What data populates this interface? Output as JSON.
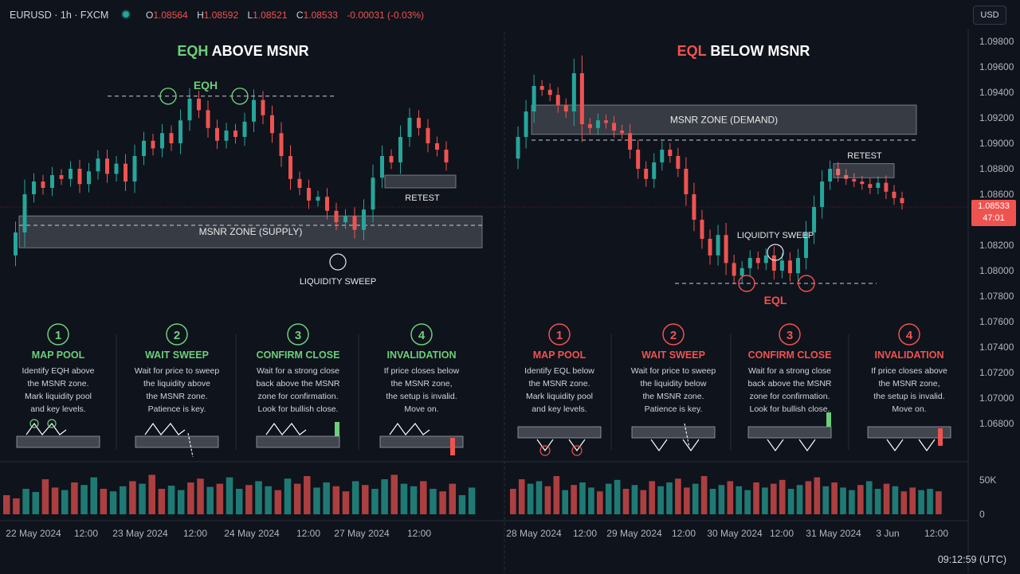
{
  "header": {
    "symbol": "EURUSD · 1h · FXCM",
    "ohlc": [
      {
        "k": "O",
        "v": "1.08564"
      },
      {
        "k": "H",
        "v": "1.08592"
      },
      {
        "k": "L",
        "v": "1.08521"
      },
      {
        "k": "C",
        "v": "1.08533"
      }
    ],
    "change": "-0.00031 (-0.03%)",
    "currency": "USD"
  },
  "price_tag": {
    "price": "1.08533",
    "countdown": "47:01"
  },
  "time_readout": "09:12:59 (UTC)",
  "colors": {
    "up": "#26a69a",
    "down": "#ef5350",
    "eqh": "#6ccf7a",
    "eql": "#ef5350",
    "background": "#0f131c",
    "zone": "#c8ccd5"
  },
  "panels": [
    {
      "title_key": "EQH",
      "title_rest": "ABOVE MSNR",
      "title_color": "#6ccf7a",
      "zone_label": "MSNR ZONE (SUPPLY)",
      "pool_label": "EQH",
      "retest_label": "RETEST",
      "sweep_label": "LIQUIDITY SWEEP",
      "steps": [
        {
          "num": "1",
          "title": "MAP POOL",
          "lines": [
            "Identify EQH above",
            "the MSNR zone.",
            "Mark liquidity pool",
            "and key levels."
          ]
        },
        {
          "num": "2",
          "title": "WAIT SWEEP",
          "lines": [
            "Wait for price to sweep",
            "the liquidity above",
            "the MSNR zone.",
            "Patience is key."
          ]
        },
        {
          "num": "3",
          "title": "CONFIRM CLOSE",
          "lines": [
            "Wait for a strong close",
            "back above the MSNR",
            "zone for confirmation.",
            "Look for bullish close."
          ]
        },
        {
          "num": "4",
          "title": "INVALIDATION",
          "lines": [
            "If price closes below",
            "the MSNR zone,",
            "the setup is invalid.",
            "Move on."
          ]
        }
      ]
    },
    {
      "title_key": "EQL",
      "title_rest": "BELOW MSNR",
      "title_color": "#ef5350",
      "zone_label": "MSNR ZONE (DEMAND)",
      "pool_label": "EQL",
      "retest_label": "RETEST",
      "sweep_label": "LIQUIDITY SWEEP",
      "steps": [
        {
          "num": "1",
          "title": "MAP POOL",
          "lines": [
            "Identify EQL below",
            "the MSNR zone.",
            "Mark liquidity pool",
            "and key levels."
          ]
        },
        {
          "num": "2",
          "title": "WAIT SWEEP",
          "lines": [
            "Wait for price to sweep",
            "the liquidity below",
            "the MSNR zone.",
            "Patience is key."
          ]
        },
        {
          "num": "3",
          "title": "CONFIRM CLOSE",
          "lines": [
            "Wait for a strong close",
            "back above the MSNR",
            "zone for confirmation.",
            "Look for bullish close."
          ]
        },
        {
          "num": "4",
          "title": "INVALIDATION",
          "lines": [
            "If price closes above",
            "the MSNR zone,",
            "the setup is invalid.",
            "Move on."
          ]
        }
      ]
    }
  ],
  "chart_data": {
    "type": "candlestick",
    "symbol": "EURUSD",
    "interval": "1h",
    "price_axis": {
      "ticks": [
        "1.09800",
        "1.09600",
        "1.09400",
        "1.09200",
        "1.09000",
        "1.08800",
        "1.08600",
        "1.08400",
        "1.08200",
        "1.08000",
        "1.07800",
        "1.07600",
        "1.07400",
        "1.07200",
        "1.07000",
        "1.06800"
      ],
      "range": [
        1.0672,
        1.0994
      ]
    },
    "volume_axis": {
      "ticks": [
        "50K",
        "0"
      ]
    },
    "time_axis": {
      "ticks": [
        "22 May 2024",
        "12:00",
        "23 May 2024",
        "12:00",
        "24 May 2024",
        "12:00",
        "27 May 2024",
        "12:00",
        "28 May 2024",
        "12:00",
        "29 May 2024",
        "12:00",
        "30 May 2024",
        "12:00",
        "31 May 2024",
        "3 Jun",
        "12:00"
      ]
    },
    "left_panel": {
      "zone": {
        "label": "MSNR ZONE (SUPPLY)",
        "low": 1.0818,
        "high": 1.0843
      },
      "eqh_level": 1.0937,
      "retest_zone": {
        "low": 1.0865,
        "high": 1.0875
      },
      "path": [
        1.0812,
        1.083,
        1.086,
        1.087,
        1.0865,
        1.0875,
        1.0872,
        1.088,
        1.0868,
        1.0878,
        1.0888,
        1.0876,
        1.0884,
        1.087,
        1.089,
        1.0902,
        1.0896,
        1.0908,
        1.09,
        1.0918,
        1.0935,
        1.0926,
        1.0912,
        1.0902,
        1.091,
        1.0905,
        1.0917,
        1.0934,
        1.0922,
        1.0908,
        1.089,
        1.0872,
        1.0865,
        1.0855,
        1.0858,
        1.0847,
        1.0838,
        1.0843,
        1.0832,
        1.0848,
        1.0873,
        1.089,
        1.0885,
        1.0905,
        1.092,
        1.0912,
        1.09,
        1.0895,
        1.0885
      ],
      "volume": [
        30,
        25,
        40,
        35,
        55,
        42,
        38,
        50,
        46,
        58,
        40,
        36,
        44,
        52,
        48,
        62,
        40,
        45,
        38,
        50,
        56,
        43,
        48,
        58,
        40,
        46,
        52,
        44,
        38,
        56,
        48,
        60,
        42,
        50,
        44,
        36,
        52,
        46,
        40,
        55,
        62,
        48,
        44,
        52,
        40,
        36,
        48,
        30,
        42
      ]
    },
    "right_panel": {
      "zone": {
        "label": "MSNR ZONE (DEMAND)",
        "low": 1.0907,
        "high": 1.093
      },
      "eql_level": 1.079,
      "retest_zone": {
        "low": 1.0873,
        "high": 1.0884
      },
      "path": [
        1.0888,
        1.0905,
        1.0925,
        1.0945,
        1.0942,
        1.0938,
        1.093,
        1.0925,
        1.0955,
        1.0915,
        1.0912,
        1.0918,
        1.0916,
        1.091,
        1.0908,
        1.0895,
        1.088,
        1.0872,
        1.0885,
        1.0895,
        1.089,
        1.088,
        1.086,
        1.084,
        1.0825,
        1.0812,
        1.0828,
        1.0806,
        1.0796,
        1.0802,
        1.081,
        1.0806,
        1.0812,
        1.08,
        1.0808,
        1.0798,
        1.081,
        1.083,
        1.085,
        1.087,
        1.088,
        1.0875,
        1.0872,
        1.087,
        1.0868,
        1.0865,
        1.0869,
        1.0862,
        1.0857,
        1.0853
      ],
      "volume": [
        40,
        55,
        48,
        52,
        44,
        60,
        38,
        46,
        50,
        42,
        36,
        48,
        54,
        40,
        46,
        38,
        52,
        44,
        50,
        56,
        42,
        48,
        60,
        40,
        46,
        52,
        44,
        38,
        50,
        42,
        48,
        54,
        40,
        46,
        52,
        58,
        44,
        50,
        42,
        38,
        46,
        52,
        40,
        48,
        44,
        36,
        42,
        38,
        40,
        36
      ]
    }
  }
}
